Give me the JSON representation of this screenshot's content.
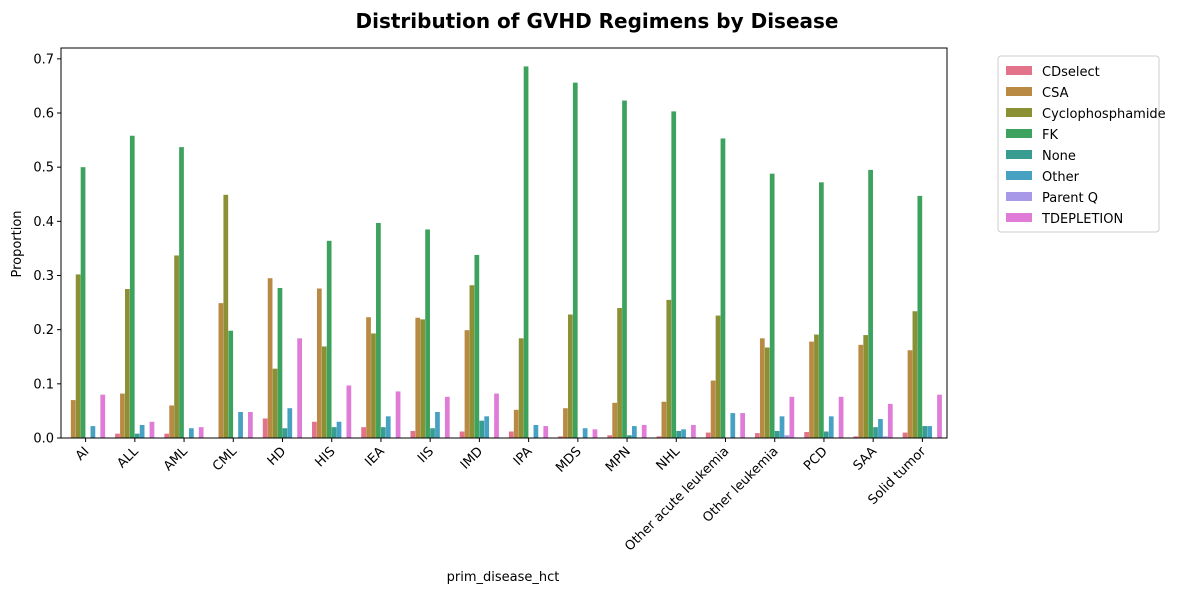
{
  "chart_data": {
    "type": "bar",
    "title": "Distribution of GVHD Regimens by Disease",
    "xlabel": "prim_disease_hct",
    "ylabel": "Proportion",
    "ylim": [
      0,
      0.72
    ],
    "yticks": [
      "0.0",
      "0.1",
      "0.2",
      "0.3",
      "0.4",
      "0.5",
      "0.6",
      "0.7"
    ],
    "legend_position": "outside-top-right",
    "grid": false,
    "categories": [
      "AI",
      "ALL",
      "AML",
      "CML",
      "HD",
      "HIS",
      "IEA",
      "IIS",
      "IMD",
      "IPA",
      "MDS",
      "MPN",
      "NHL",
      "Other acute leukemia",
      "Other leukemia",
      "PCD",
      "SAA",
      "Solid tumor"
    ],
    "series": [
      {
        "name": "CDselect",
        "color": "#e2738b",
        "values": [
          0.0,
          0.008,
          0.008,
          0.0,
          0.036,
          0.03,
          0.02,
          0.013,
          0.012,
          0.012,
          0.003,
          0.005,
          0.003,
          0.01,
          0.009,
          0.011,
          0.003,
          0.01
        ]
      },
      {
        "name": "CSA",
        "color": "#b98a43",
        "values": [
          0.07,
          0.082,
          0.06,
          0.249,
          0.295,
          0.276,
          0.223,
          0.222,
          0.199,
          0.052,
          0.055,
          0.065,
          0.067,
          0.106,
          0.184,
          0.178,
          0.172,
          0.162
        ]
      },
      {
        "name": "Cyclophosphamide",
        "color": "#8b9034",
        "values": [
          0.302,
          0.275,
          0.337,
          0.449,
          0.128,
          0.169,
          0.193,
          0.219,
          0.282,
          0.184,
          0.228,
          0.24,
          0.255,
          0.226,
          0.167,
          0.191,
          0.19,
          0.234
        ]
      },
      {
        "name": "FK",
        "color": "#3ea25f",
        "values": [
          0.5,
          0.558,
          0.537,
          0.198,
          0.277,
          0.364,
          0.397,
          0.385,
          0.338,
          0.686,
          0.656,
          0.623,
          0.603,
          0.553,
          0.488,
          0.472,
          0.495,
          0.447
        ]
      },
      {
        "name": "None",
        "color": "#389c91",
        "values": [
          0.0,
          0.008,
          0.0,
          0.0,
          0.018,
          0.02,
          0.02,
          0.018,
          0.032,
          0.0,
          0.0,
          0.005,
          0.013,
          0.0,
          0.013,
          0.012,
          0.02,
          0.022
        ]
      },
      {
        "name": "Other",
        "color": "#46a1c3",
        "values": [
          0.022,
          0.024,
          0.018,
          0.048,
          0.055,
          0.03,
          0.04,
          0.048,
          0.04,
          0.024,
          0.018,
          0.022,
          0.016,
          0.046,
          0.04,
          0.04,
          0.035,
          0.022
        ]
      },
      {
        "name": "Parent Q",
        "color": "#a898e8",
        "values": [
          0.0,
          0.0,
          0.0,
          0.0,
          0.0,
          0.0,
          0.0,
          0.0,
          0.0,
          0.0,
          0.0,
          0.0,
          0.0,
          0.0,
          0.005,
          0.0,
          0.003,
          0.0
        ]
      },
      {
        "name": "TDEPLETION",
        "color": "#e07bd8",
        "values": [
          0.08,
          0.03,
          0.02,
          0.048,
          0.184,
          0.097,
          0.086,
          0.076,
          0.082,
          0.022,
          0.016,
          0.024,
          0.024,
          0.046,
          0.076,
          0.076,
          0.063,
          0.08
        ]
      }
    ]
  }
}
